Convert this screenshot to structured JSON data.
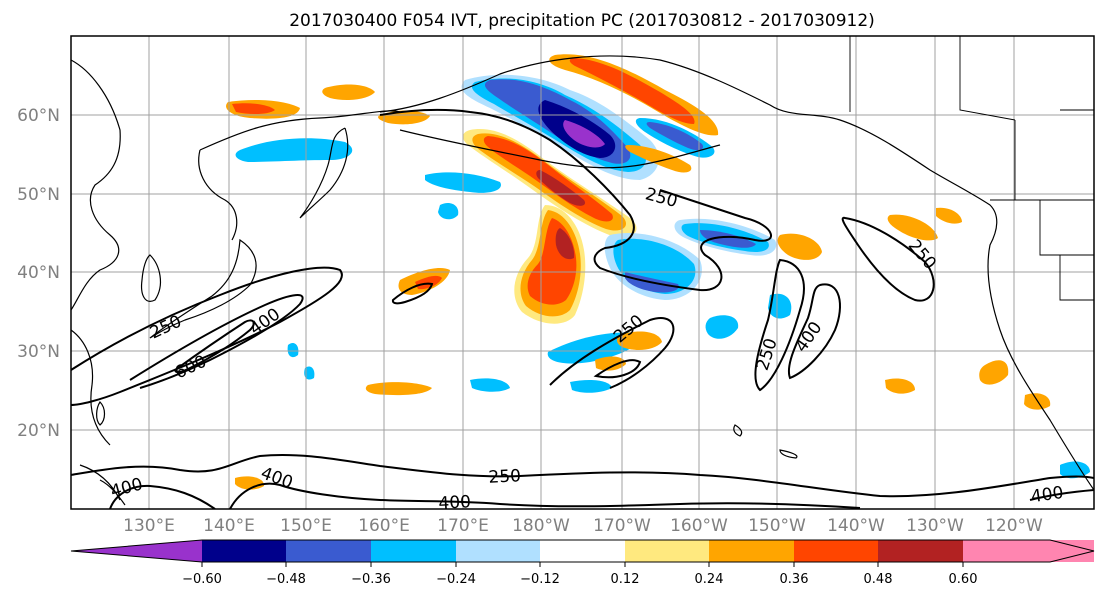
{
  "title": "2017030400 F054 IVT, precipitation PC (2017030812 - 2017030912)",
  "colors": {
    "neg_060_below": "#9932CC",
    "neg_060_048": "#00008B",
    "neg_048_036": "#3A5BD0",
    "neg_036_024": "#00BFFF",
    "neg_024_012": "#B0E0FF",
    "neutral": "#FFFFFF",
    "pos_012_024": "#FFE97F",
    "pos_024_036": "#FFA500",
    "pos_036_048": "#FF4500",
    "pos_048_060": "#B22222",
    "pos_060_above": "#FF85B0"
  },
  "axes": {
    "lat_labels": [
      "60°N",
      "50°N",
      "40°N",
      "30°N",
      "20°N"
    ],
    "lon_labels": [
      "130°E",
      "140°E",
      "150°E",
      "160°E",
      "170°E",
      "180°W",
      "170°W",
      "160°W",
      "150°W",
      "140°W",
      "130°W",
      "120°W"
    ]
  },
  "colorbar": {
    "tick_labels": [
      "−0.60",
      "−0.48",
      "−0.36",
      "−0.24",
      "−0.12",
      "0.12",
      "0.24",
      "0.36",
      "0.48",
      "0.60"
    ]
  },
  "contour_labels": {
    "c250_a": "250",
    "c250_b": "250",
    "c250_c": "250",
    "c250_d": "250",
    "c250_e": "250",
    "c250_f": "250",
    "c400_a": "400",
    "c400_b": "400",
    "c400_c": "400",
    "c400_d": "400",
    "c400_e": "400",
    "c400_f": "400",
    "c600_a": "600"
  }
}
